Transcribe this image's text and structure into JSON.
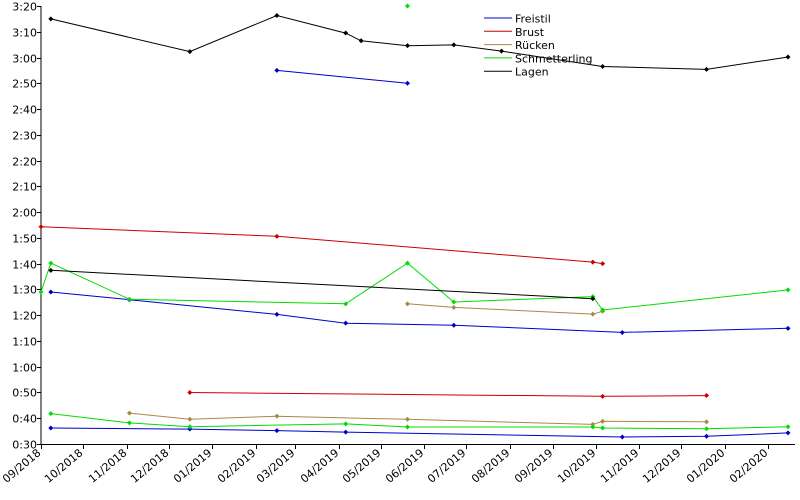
{
  "chart_data": {
    "type": "line",
    "title": "",
    "xlabel": "",
    "ylabel": "",
    "y_unit": "seconds (ticks shown as m:ss)",
    "xlim": [
      "2018-09-01",
      "2020-02-20"
    ],
    "ylim": [
      30,
      200
    ],
    "y_ticks": [
      30,
      40,
      50,
      60,
      70,
      80,
      90,
      100,
      110,
      120,
      130,
      140,
      150,
      160,
      170,
      180,
      190,
      200
    ],
    "y_tick_labels": [
      "0:30",
      "0:40",
      "0:50",
      "1:00",
      "1:10",
      "1:20",
      "1:30",
      "1:40",
      "1:50",
      "2:00",
      "2:10",
      "2:20",
      "2:30",
      "2:40",
      "2:50",
      "3:00",
      "3:10",
      "3:20"
    ],
    "x_ticks": [
      "2018-09-01",
      "2018-10-01",
      "2018-11-01",
      "2018-12-01",
      "2019-01-01",
      "2019-02-01",
      "2019-03-01",
      "2019-04-01",
      "2019-05-01",
      "2019-06-01",
      "2019-07-01",
      "2019-08-01",
      "2019-09-01",
      "2019-10-01",
      "2019-11-01",
      "2019-12-01",
      "2020-01-01",
      "2020-02-01"
    ],
    "x_tick_labels": [
      "09/2018",
      "10/2018",
      "11/2018",
      "12/2018",
      "01/2019",
      "02/2019",
      "03/2019",
      "04/2019",
      "05/2019",
      "06/2019",
      "07/2019",
      "08/2019",
      "09/2019",
      "10/2019",
      "11/2019",
      "12/2019",
      "01/2020",
      "02/2020"
    ],
    "legend": {
      "position": "top-right",
      "entries": [
        "Freistil",
        "Brust",
        "Rücken",
        "Schmetterling",
        "Lagen"
      ]
    },
    "grid": false,
    "series": [
      {
        "name": "Freistil",
        "color": "#0000cc",
        "lines": [
          [
            [
              "2018-09-08",
              36.2
            ],
            [
              "2018-12-16",
              35.8
            ],
            [
              "2019-02-16",
              35.2
            ],
            [
              "2019-04-06",
              34.6
            ],
            [
              "2019-10-20",
              32.7
            ],
            [
              "2019-12-19",
              33.0
            ],
            [
              "2020-02-15",
              34.3
            ]
          ],
          [
            [
              "2018-09-08",
              89.0
            ],
            [
              "2018-11-03",
              86.0
            ],
            [
              "2019-02-16",
              80.3
            ],
            [
              "2019-04-06",
              76.9
            ],
            [
              "2019-06-22",
              76.1
            ],
            [
              "2019-10-20",
              73.3
            ],
            [
              "2020-02-15",
              74.9
            ]
          ],
          [
            [
              "2019-02-16",
              175.0
            ],
            [
              "2019-05-20",
              170.0
            ]
          ]
        ]
      },
      {
        "name": "Brust",
        "color": "#cc0000",
        "lines": [
          [
            [
              "2018-12-16",
              50.0
            ],
            [
              "2019-10-06",
              48.5
            ],
            [
              "2019-12-19",
              48.8
            ]
          ],
          [
            [
              "2018-09-01",
              114.3
            ],
            [
              "2019-02-16",
              110.6
            ],
            [
              "2019-09-29",
              100.6
            ],
            [
              "2019-10-06",
              100.0
            ]
          ]
        ]
      },
      {
        "name": "Rücken",
        "color": "#aa8844",
        "lines": [
          [
            [
              "2018-11-03",
              42.0
            ],
            [
              "2018-12-16",
              39.6
            ],
            [
              "2019-02-16",
              40.8
            ],
            [
              "2019-05-20",
              39.6
            ],
            [
              "2019-09-29",
              37.6
            ],
            [
              "2019-10-06",
              38.8
            ],
            [
              "2019-12-19",
              38.6
            ]
          ],
          [
            [
              "2019-05-20",
              84.4
            ],
            [
              "2019-06-22",
              83.0
            ],
            [
              "2019-09-29",
              80.4
            ],
            [
              "2019-10-06",
              81.5
            ]
          ]
        ]
      },
      {
        "name": "Schmetterling",
        "color": "#00dd00",
        "lines": [
          [
            [
              "2018-09-08",
              41.8
            ],
            [
              "2018-11-03",
              38.2
            ],
            [
              "2018-12-16",
              36.7
            ],
            [
              "2019-04-06",
              37.8
            ],
            [
              "2019-05-20",
              36.6
            ],
            [
              "2019-09-29",
              36.6
            ],
            [
              "2019-10-06",
              36.2
            ],
            [
              "2019-12-19",
              35.9
            ],
            [
              "2020-02-15",
              36.7
            ]
          ],
          [
            [
              "2018-09-01",
              89.0
            ],
            [
              "2018-09-08",
              100.2
            ],
            [
              "2018-11-03",
              86.2
            ],
            [
              "2019-04-06",
              84.4
            ],
            [
              "2019-05-20",
              100.2
            ],
            [
              "2019-06-22",
              85.1
            ],
            [
              "2019-09-29",
              87.2
            ],
            [
              "2019-10-06",
              82.0
            ],
            [
              "2020-02-15",
              89.8
            ]
          ],
          [
            [
              "2019-05-20",
              200.0
            ]
          ]
        ]
      },
      {
        "name": "Lagen",
        "color": "#000000",
        "lines": [
          [
            [
              "2018-09-08",
              97.4
            ],
            [
              "2019-09-29",
              86.4
            ]
          ],
          [
            [
              "2018-09-08",
              195.0
            ],
            [
              "2018-12-16",
              182.3
            ],
            [
              "2019-02-16",
              196.3
            ],
            [
              "2019-04-06",
              189.5
            ],
            [
              "2019-04-17",
              186.5
            ],
            [
              "2019-05-20",
              184.6
            ],
            [
              "2019-06-22",
              184.9
            ],
            [
              "2019-07-26",
              182.5
            ],
            [
              "2019-10-06",
              176.5
            ],
            [
              "2019-12-19",
              175.4
            ],
            [
              "2020-02-15",
              180.2
            ]
          ]
        ]
      }
    ]
  }
}
